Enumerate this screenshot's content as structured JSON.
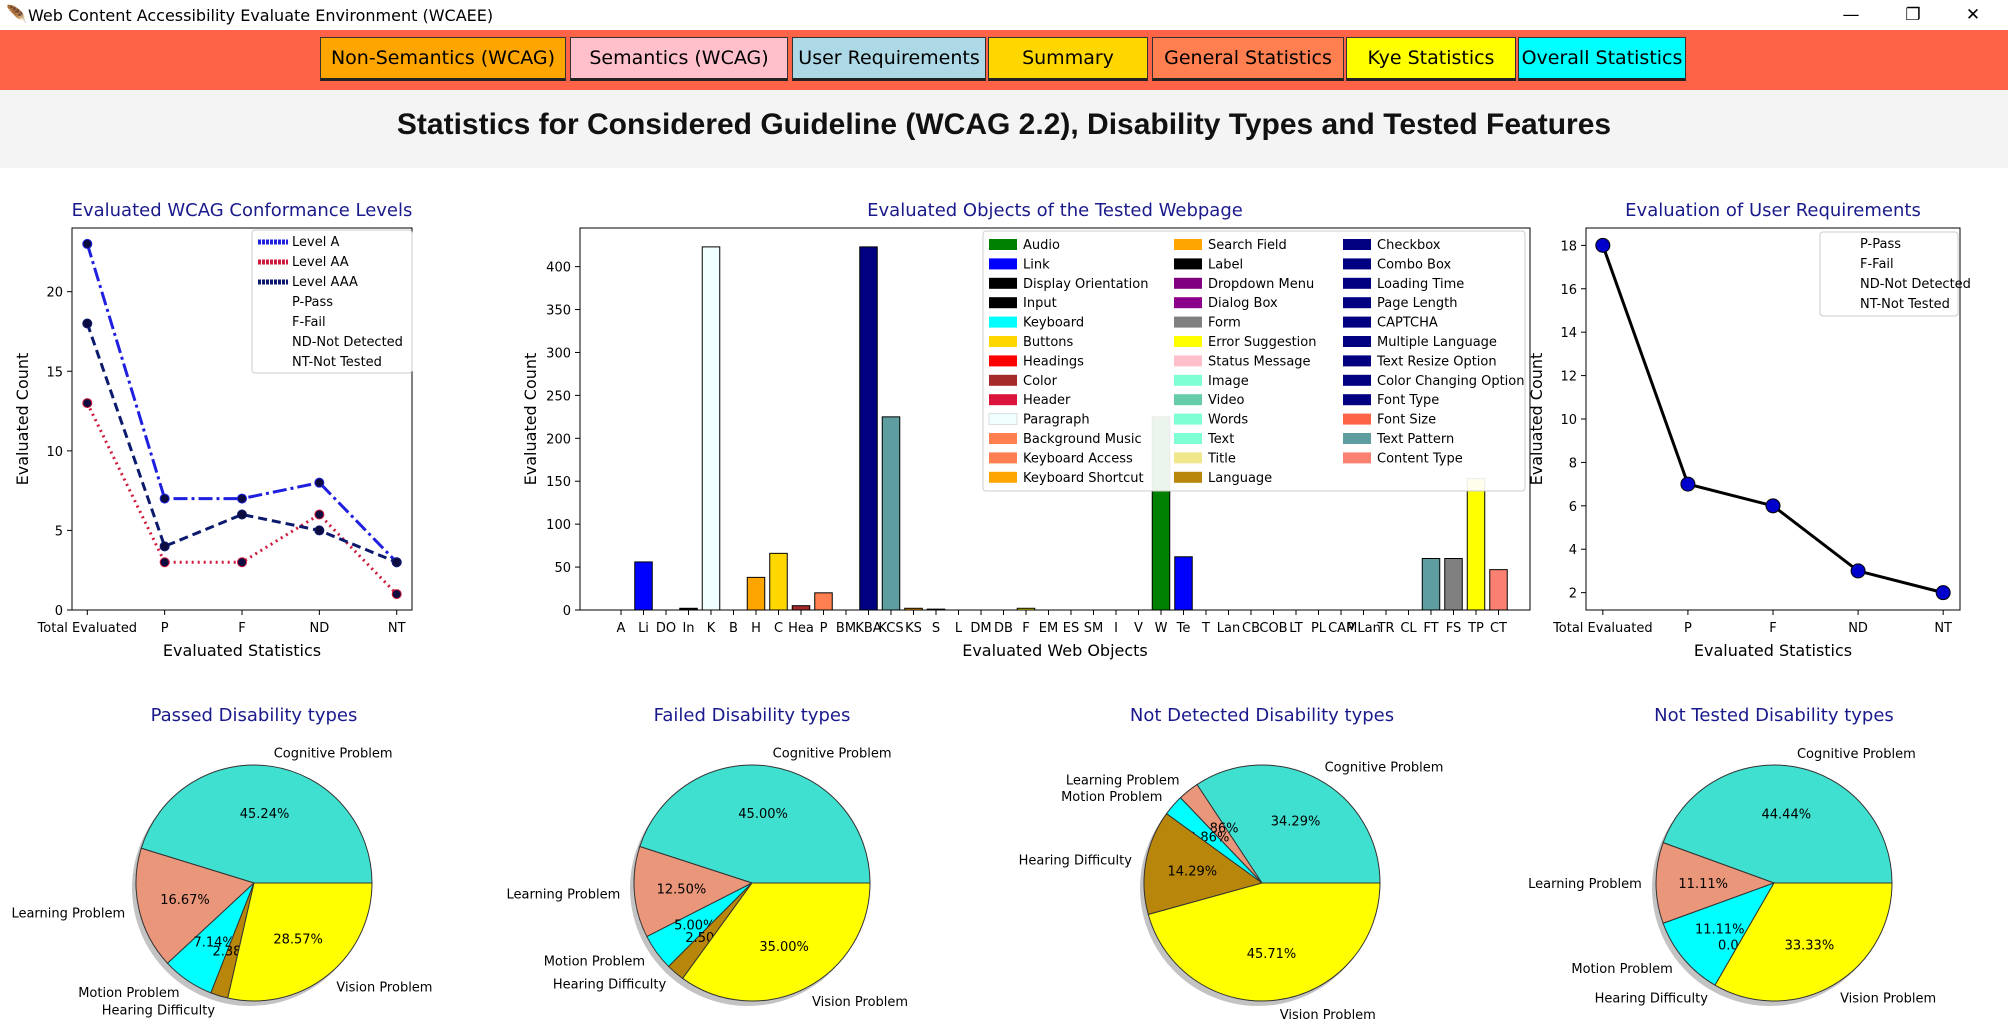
{
  "window": {
    "title": "Web Content Accessibility Evaluate Environment (WCAEE)",
    "minimize": "—",
    "maximize": "❐",
    "close": "✕"
  },
  "tabs": [
    {
      "label": "Non-Semantics (WCAG)",
      "color": "#ffa500"
    },
    {
      "label": "Semantics (WCAG)",
      "color": "#ffc0cb"
    },
    {
      "label": "User Requirements",
      "color": "#add8e6"
    },
    {
      "label": "Summary",
      "color": "#ffd700"
    },
    {
      "label": "General Statistics",
      "color": "#ff7f50"
    },
    {
      "label": "Kye Statistics",
      "color": "#ffff00"
    },
    {
      "label": "Overall Statistics",
      "color": "#00ffff"
    }
  ],
  "heading": "Statistics for Considered Guideline (WCAG 2.2), Disability Types and Tested Features",
  "chart_data": [
    {
      "id": "wcag",
      "type": "line",
      "title": "Evaluated WCAG Conformance Levels",
      "xlabel": "Evaluated Statistics",
      "ylabel": "Evaluated Count",
      "categories": [
        "Total Evaluated",
        "P",
        "F",
        "ND",
        "NT"
      ],
      "ylim": [
        0,
        24
      ],
      "yticks": [
        0,
        5,
        10,
        15,
        20
      ],
      "series": [
        {
          "name": "Level A",
          "values": [
            23,
            7,
            7,
            8,
            3
          ],
          "color": "#1f1fe0",
          "dash": "14,4,3,4"
        },
        {
          "name": "Level AA",
          "values": [
            13,
            3,
            3,
            6,
            1
          ],
          "color": "#d01a3c",
          "dash": "2,4"
        },
        {
          "name": "Level AAA",
          "values": [
            18,
            4,
            6,
            5,
            3
          ],
          "color": "#0c1a6e",
          "dash": "9,5"
        }
      ],
      "legend": [
        "Level A",
        "Level AA",
        "Level AAA",
        "P-Pass",
        "F-Fail",
        "ND-Not Detected",
        "NT-Not Tested"
      ]
    },
    {
      "id": "objects",
      "type": "bar",
      "title": "Evaluated Objects of the Tested Webpage",
      "xlabel": "Evaluated Web Objects",
      "ylabel": "Evaluated Count",
      "ylim": [
        0,
        445
      ],
      "yticks": [
        0,
        50,
        100,
        150,
        200,
        250,
        300,
        350,
        400
      ],
      "ticklabels": [
        "A",
        "Li",
        "DO",
        "In",
        "K",
        "B",
        "H",
        "C",
        "Hea",
        "P",
        "BM",
        "KBA",
        "KCS",
        "KS",
        "S",
        "L",
        "DM",
        "DB",
        "F",
        "EM",
        "ES",
        "SM",
        "I",
        "V",
        "W",
        "Te",
        "T",
        "Lan",
        "CB",
        "COB",
        "LT",
        "PL",
        "CAP",
        "MLan",
        "TR",
        "CL",
        "FT",
        "FS",
        "TP",
        "CT"
      ],
      "items": [
        {
          "name": "Audio",
          "value": 0,
          "color": "#008000"
        },
        {
          "name": "Link",
          "value": 56,
          "color": "#0000ff"
        },
        {
          "name": "Display Orientation",
          "value": 0,
          "color": "#000000"
        },
        {
          "name": "Input",
          "value": 2,
          "color": "#000000"
        },
        {
          "name": "Keyboard",
          "value": 423,
          "color": "#f0ffff"
        },
        {
          "name": "Buttons",
          "value": 0,
          "color": "#ffd700"
        },
        {
          "name": "Headings",
          "value": 38,
          "color": "#ffa500"
        },
        {
          "name": "Color",
          "value": 66,
          "color": "#ffd700"
        },
        {
          "name": "Header",
          "value": 5,
          "color": "#a52a2a"
        },
        {
          "name": "Paragraph",
          "value": 20,
          "color": "#ff7f50"
        },
        {
          "name": "Background Music",
          "value": 0,
          "color": "#ff8c69"
        },
        {
          "name": "Keyboard Access",
          "value": 423,
          "color": "#000080"
        },
        {
          "name": "Keyboard Shortcut",
          "value": 225,
          "color": "#5f9ea0"
        },
        {
          "name": "Search Field",
          "value": 2,
          "color": "#ffa500"
        },
        {
          "name": "Label",
          "value": 1,
          "color": "#000000"
        },
        {
          "name": "Dropdown Menu",
          "value": 0,
          "color": "#800080"
        },
        {
          "name": "Dialog Box",
          "value": 0,
          "color": "#8b008b"
        },
        {
          "name": "Form",
          "value": 0,
          "color": "#808080"
        },
        {
          "name": "Error Suggestion",
          "value": 2,
          "color": "#ffff00"
        },
        {
          "name": "Status Message",
          "value": 0,
          "color": "#ffc0cb"
        },
        {
          "name": "Image",
          "value": 0,
          "color": "#7fffd4"
        },
        {
          "name": "Video",
          "value": 0,
          "color": "#66cdaa"
        },
        {
          "name": "Words",
          "value": 0,
          "color": "#7fffd4"
        },
        {
          "name": "Text",
          "value": 0,
          "color": "#98fb98"
        },
        {
          "name": "Title",
          "value": 225,
          "color": "#008000"
        },
        {
          "name": "Language",
          "value": 62,
          "color": "#0000ff"
        },
        {
          "name": "Checkbox",
          "value": 0,
          "color": "#000080"
        },
        {
          "name": "Combo Box",
          "value": 0,
          "color": "#000080"
        },
        {
          "name": "Loading Time",
          "value": 0,
          "color": "#000080"
        },
        {
          "name": "Page Length",
          "value": 0,
          "color": "#000080"
        },
        {
          "name": "CAPTCHA",
          "value": 0,
          "color": "#000080"
        },
        {
          "name": "Multiple Language",
          "value": 0,
          "color": "#000080"
        },
        {
          "name": "Text Resize Option",
          "value": 0,
          "color": "#000080"
        },
        {
          "name": "Color Changing Option",
          "value": 0,
          "color": "#000080"
        },
        {
          "name": "Font Type",
          "value": 0,
          "color": "#000080"
        },
        {
          "name": "Font Size",
          "value": 0,
          "color": "#000080"
        },
        {
          "name": "Text Pattern",
          "value": 60,
          "color": "#5f9ea0"
        },
        {
          "name": "Content Type",
          "value": 60,
          "color": "#808080"
        },
        {
          "name": "Text Pattern",
          "value": 153,
          "color": "#ffff00"
        },
        {
          "name": "Content Type",
          "value": 47,
          "color": "#fa8072"
        }
      ],
      "legend": [
        {
          "name": "Audio",
          "color": "#008000"
        },
        {
          "name": "Link",
          "color": "#0000ff"
        },
        {
          "name": "Display Orientation",
          "color": "#000000"
        },
        {
          "name": "Input",
          "color": "#000000"
        },
        {
          "name": "Keyboard",
          "color": "#00ffff"
        },
        {
          "name": "Buttons",
          "color": "#ffd700"
        },
        {
          "name": "Headings",
          "color": "#ff0000"
        },
        {
          "name": "Color",
          "color": "#a52a2a"
        },
        {
          "name": "Header",
          "color": "#dc143c"
        },
        {
          "name": "Paragraph",
          "color": "#f0ffff"
        },
        {
          "name": "Background Music",
          "color": "#ff7f50"
        },
        {
          "name": "Keyboard Access",
          "color": "#ff7f50"
        },
        {
          "name": "Keyboard Shortcut",
          "color": "#ffa500"
        },
        {
          "name": "Search Field",
          "color": "#ffa500"
        },
        {
          "name": "Label",
          "color": "#000000"
        },
        {
          "name": "Dropdown Menu",
          "color": "#800080"
        },
        {
          "name": "Dialog Box",
          "color": "#8b008b"
        },
        {
          "name": "Form",
          "color": "#808080"
        },
        {
          "name": "Error Suggestion",
          "color": "#ffff00"
        },
        {
          "name": "Status Message",
          "color": "#ffc0cb"
        },
        {
          "name": "Image",
          "color": "#7fffd4"
        },
        {
          "name": "Video",
          "color": "#66cdaa"
        },
        {
          "name": "Words",
          "color": "#7fffd4"
        },
        {
          "name": "Text",
          "color": "#7fffd4"
        },
        {
          "name": "Title",
          "color": "#f0e68c"
        },
        {
          "name": "Language",
          "color": "#b8860b"
        },
        {
          "name": "Checkbox",
          "color": "#000080"
        },
        {
          "name": "Combo Box",
          "color": "#000080"
        },
        {
          "name": "Loading Time",
          "color": "#000080"
        },
        {
          "name": "Page Length",
          "color": "#000080"
        },
        {
          "name": "CAPTCHA",
          "color": "#000080"
        },
        {
          "name": "Multiple Language",
          "color": "#000080"
        },
        {
          "name": "Text Resize Option",
          "color": "#000080"
        },
        {
          "name": "Color Changing Option",
          "color": "#000080"
        },
        {
          "name": "Font Type",
          "color": "#000080"
        },
        {
          "name": "Font Size",
          "color": "#ff6347"
        },
        {
          "name": "Text Pattern",
          "color": "#5f9ea0"
        },
        {
          "name": "Content Type",
          "color": "#fa8072"
        }
      ]
    },
    {
      "id": "userreq",
      "type": "line",
      "title": "Evaluation of User Requirements",
      "xlabel": "Evaluated Statistics",
      "ylabel": "Evaluated Count",
      "categories": [
        "Total Evaluated",
        "P",
        "F",
        "ND",
        "NT"
      ],
      "ylim": [
        1.2,
        18.8
      ],
      "yticks": [
        2,
        4,
        6,
        8,
        10,
        12,
        14,
        16,
        18
      ],
      "series": [
        {
          "name": "User Requirements",
          "values": [
            18,
            7,
            6,
            3,
            2
          ],
          "color": "#000000",
          "marker": "#0000cc"
        }
      ],
      "legend": [
        "P-Pass",
        "F-Fail",
        "ND-Not Detected",
        "NT-Not Tested"
      ]
    },
    {
      "id": "pie-pass",
      "type": "pie",
      "title": "Passed Disability types",
      "slices": [
        {
          "label": "Cognitive Problem",
          "value": 45.24,
          "pct": "45.24%",
          "color": "#40e0d0"
        },
        {
          "label": "Learning Problem",
          "value": 16.67,
          "pct": "16.67%",
          "color": "#e9967a"
        },
        {
          "label": "Motion Problem",
          "value": 7.14,
          "pct": "7.14%",
          "color": "#00ffff"
        },
        {
          "label": "Hearing Difficulty",
          "value": 2.38,
          "pct": "2.38%",
          "color": "#b8860b"
        },
        {
          "label": "Vision Problem",
          "value": 28.57,
          "pct": "28.57%",
          "color": "#ffff00"
        }
      ]
    },
    {
      "id": "pie-fail",
      "type": "pie",
      "title": "Failed Disability types",
      "slices": [
        {
          "label": "Cognitive Problem",
          "value": 45.0,
          "pct": "45.00%",
          "color": "#40e0d0"
        },
        {
          "label": "Learning Problem",
          "value": 12.5,
          "pct": "12.50%",
          "color": "#e9967a"
        },
        {
          "label": "Motion Problem",
          "value": 5.0,
          "pct": "5.00%",
          "color": "#00ffff"
        },
        {
          "label": "Hearing Difficulty",
          "value": 2.5,
          "pct": "2.50%",
          "color": "#b8860b"
        },
        {
          "label": "Vision Problem",
          "value": 35.0,
          "pct": "35.00%",
          "color": "#ffff00"
        }
      ]
    },
    {
      "id": "pie-nd",
      "type": "pie",
      "title": "Not Detected Disability types",
      "slices": [
        {
          "label": "Cognitive Problem",
          "value": 34.29,
          "pct": "34.29%",
          "color": "#40e0d0"
        },
        {
          "label": "Learning Problem",
          "value": 2.86,
          "pct": "2.86%",
          "color": "#e9967a"
        },
        {
          "label": "Motion Problem",
          "value": 2.86,
          "pct": "2.86%",
          "color": "#00ffff"
        },
        {
          "label": "Hearing Difficulty",
          "value": 14.29,
          "pct": "14.29%",
          "color": "#b8860b"
        },
        {
          "label": "Vision Problem",
          "value": 45.71,
          "pct": "45.71%",
          "color": "#ffff00"
        }
      ]
    },
    {
      "id": "pie-nt",
      "type": "pie",
      "title": "Not Tested Disability types",
      "slices": [
        {
          "label": "Cognitive Problem",
          "value": 44.44,
          "pct": "44.44%",
          "color": "#40e0d0"
        },
        {
          "label": "Learning Problem",
          "value": 11.11,
          "pct": "11.11%",
          "color": "#e9967a"
        },
        {
          "label": "Motion Problem",
          "value": 11.11,
          "pct": "11.11%",
          "color": "#00ffff"
        },
        {
          "label": "Hearing Difficulty",
          "value": 0.0,
          "pct": "0.00%",
          "color": "#b8860b"
        },
        {
          "label": "Vision Problem",
          "value": 33.33,
          "pct": "33.33%",
          "color": "#ffff00"
        }
      ]
    }
  ]
}
